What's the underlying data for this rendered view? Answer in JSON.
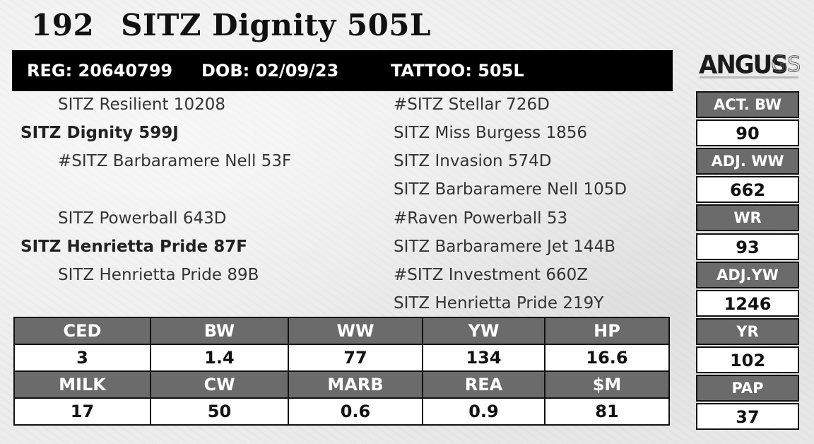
{
  "header": {
    "lot": "192",
    "name": "SITZ Dignity 505L"
  },
  "info": {
    "reg": "REG: 20640799",
    "dob": "DOB: 02/09/23",
    "tattoo": "TATTOO: 505L"
  },
  "logo": {
    "word": "ANGUS",
    "suffix": "GS"
  },
  "pedigree": {
    "left": {
      "sire_sire": "SITZ Resilient 10208",
      "sire": "SITZ Dignity 599J",
      "sire_dam": "#SITZ Barbaramere Nell 53F",
      "dam_sire": "SITZ Powerball 643D",
      "dam": "SITZ Henrietta Pride 87F",
      "dam_dam": "SITZ Henrietta Pride 89B"
    },
    "right": [
      "#SITZ Stellar 726D",
      "SITZ Miss Burgess 1856",
      "SITZ Invasion 574D",
      "SITZ Barbaramere Nell 105D",
      "#Raven Powerball 53",
      "SITZ Barbaramere Jet 144B",
      "#SITZ Investment 660Z",
      "SITZ Henrietta Pride 219Y"
    ]
  },
  "epd": {
    "row1_headers": [
      "CED",
      "BW",
      "WW",
      "YW",
      "HP"
    ],
    "row1_values": [
      "3",
      "1.4",
      "77",
      "134",
      "16.6"
    ],
    "row2_headers": [
      "MILK",
      "CW",
      "MARB",
      "REA",
      "$M"
    ],
    "row2_values": [
      "17",
      "50",
      "0.6",
      "0.9",
      "81"
    ]
  },
  "side": [
    {
      "label": "ACT. BW",
      "value": "90"
    },
    {
      "label": "ADJ. WW",
      "value": "662"
    },
    {
      "label": "WR",
      "value": "93"
    },
    {
      "label": "ADJ.YW",
      "value": "1246"
    },
    {
      "label": "YR",
      "value": "102"
    },
    {
      "label": "PAP",
      "value": "37"
    }
  ]
}
